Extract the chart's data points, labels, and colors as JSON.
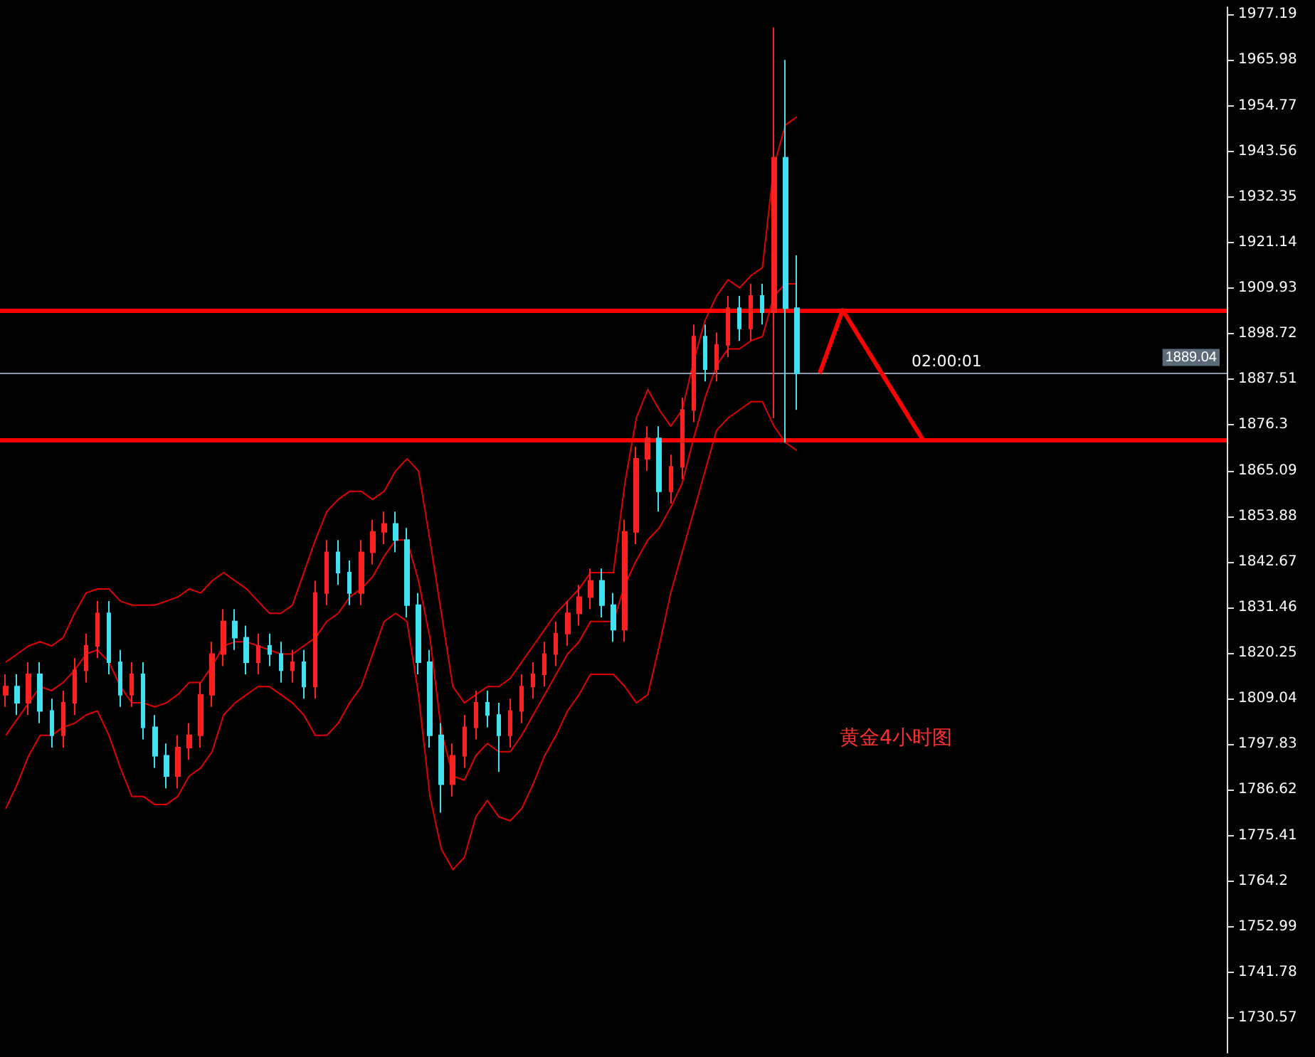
{
  "chart_data": {
    "type": "candlestick",
    "ylim": [
      1722,
      1979
    ],
    "yticks": [
      1977.19,
      1965.98,
      1954.77,
      1943.56,
      1932.35,
      1921.14,
      1909.93,
      1898.72,
      1887.51,
      1876.3,
      1865.09,
      1853.88,
      1842.67,
      1831.46,
      1820.25,
      1809.04,
      1797.83,
      1786.62,
      1775.41,
      1764.2,
      1752.99,
      1741.78,
      1730.57
    ],
    "tick_labels": "y",
    "grid": false,
    "marker": "none",
    "line_style": "solid",
    "categories": [
      null,
      null,
      null,
      null,
      null,
      null,
      null,
      null,
      null,
      null,
      null,
      null,
      null,
      null,
      null,
      null,
      null,
      null,
      null,
      null,
      null,
      null,
      null,
      null,
      null,
      null,
      null,
      null,
      null,
      null,
      null,
      null,
      null,
      null,
      null,
      null,
      null,
      null,
      null,
      null,
      null,
      null,
      null,
      null,
      null,
      null,
      null,
      null,
      null,
      null,
      null,
      null,
      null,
      null,
      null,
      null,
      null,
      null,
      null,
      null,
      null,
      null,
      null,
      null,
      null,
      null,
      null,
      null,
      null,
      null,
      null,
      null,
      null,
      null,
      null,
      null,
      null,
      null,
      null,
      null,
      null,
      null,
      null,
      null,
      null,
      null,
      null,
      null,
      null,
      null,
      null,
      null,
      null,
      null,
      null,
      null,
      null,
      null,
      null,
      null,
      null,
      null,
      null,
      null,
      null,
      null,
      null
    ],
    "series": [
      {
        "ohlc": [
          [
            1810,
            1815,
            1807,
            1812
          ],
          [
            1812,
            1815,
            1805,
            1808
          ],
          [
            1808,
            1818,
            1805,
            1815
          ],
          [
            1815,
            1818,
            1803,
            1806
          ],
          [
            1806,
            1809,
            1797,
            1800
          ],
          [
            1800,
            1811,
            1797,
            1808
          ],
          [
            1808,
            1819,
            1805,
            1816
          ],
          [
            1816,
            1825,
            1813,
            1822
          ],
          [
            1822,
            1833,
            1819,
            1830
          ],
          [
            1830,
            1833,
            1815,
            1818
          ],
          [
            1818,
            1821,
            1807,
            1810
          ],
          [
            1810,
            1818,
            1807,
            1815
          ],
          [
            1815,
            1818,
            1799,
            1802
          ],
          [
            1802,
            1805,
            1792,
            1795
          ],
          [
            1795,
            1798,
            1787,
            1790
          ],
          [
            1790,
            1800,
            1787,
            1797
          ],
          [
            1797,
            1803,
            1794,
            1800
          ],
          [
            1800,
            1813,
            1797,
            1810
          ],
          [
            1810,
            1823,
            1807,
            1820
          ],
          [
            1820,
            1831,
            1817,
            1828
          ],
          [
            1828,
            1831,
            1821,
            1824
          ],
          [
            1824,
            1827,
            1815,
            1818
          ],
          [
            1818,
            1825,
            1815,
            1822
          ],
          [
            1822,
            1825,
            1817,
            1820
          ],
          [
            1820,
            1823,
            1813,
            1816
          ],
          [
            1816,
            1821,
            1813,
            1818
          ],
          [
            1818,
            1821,
            1809,
            1812
          ],
          [
            1812,
            1838,
            1809,
            1835
          ],
          [
            1835,
            1848,
            1832,
            1845
          ],
          [
            1845,
            1848,
            1837,
            1840
          ],
          [
            1840,
            1843,
            1832,
            1835
          ],
          [
            1835,
            1848,
            1832,
            1845
          ],
          [
            1845,
            1853,
            1842,
            1850
          ],
          [
            1850,
            1855,
            1847,
            1852
          ],
          [
            1852,
            1855,
            1845,
            1848
          ],
          [
            1848,
            1851,
            1829,
            1832
          ],
          [
            1832,
            1835,
            1815,
            1818
          ],
          [
            1818,
            1821,
            1797,
            1800
          ],
          [
            1800,
            1803,
            1781,
            1788
          ],
          [
            1788,
            1798,
            1785,
            1795
          ],
          [
            1795,
            1805,
            1792,
            1802
          ],
          [
            1802,
            1811,
            1799,
            1808
          ],
          [
            1808,
            1811,
            1802,
            1805
          ],
          [
            1805,
            1808,
            1791,
            1800
          ],
          [
            1800,
            1809,
            1797,
            1806
          ],
          [
            1806,
            1815,
            1803,
            1812
          ],
          [
            1812,
            1818,
            1809,
            1815
          ],
          [
            1815,
            1823,
            1812,
            1820
          ],
          [
            1820,
            1828,
            1817,
            1825
          ],
          [
            1825,
            1833,
            1822,
            1830
          ],
          [
            1830,
            1837,
            1827,
            1834
          ],
          [
            1834,
            1841,
            1831,
            1838
          ],
          [
            1838,
            1841,
            1829,
            1832
          ],
          [
            1832,
            1835,
            1823,
            1826
          ],
          [
            1826,
            1853,
            1823,
            1850
          ],
          [
            1850,
            1871,
            1847,
            1868
          ],
          [
            1868,
            1876,
            1865,
            1873
          ],
          [
            1873,
            1876,
            1855,
            1860
          ],
          [
            1860,
            1869,
            1857,
            1866
          ],
          [
            1866,
            1883,
            1863,
            1880
          ],
          [
            1880,
            1901,
            1877,
            1898
          ],
          [
            1898,
            1901,
            1887,
            1890
          ],
          [
            1890,
            1899,
            1887,
            1896
          ],
          [
            1896,
            1908,
            1893,
            1905
          ],
          [
            1905,
            1908,
            1897,
            1900
          ],
          [
            1900,
            1911,
            1897,
            1908
          ],
          [
            1908,
            1911,
            1901,
            1904
          ],
          [
            1904,
            1974,
            1878,
            1942
          ],
          [
            1942,
            1966,
            1872,
            1905
          ],
          [
            1905,
            1918,
            1880,
            1889
          ],
          null,
          null,
          null,
          null,
          null,
          null,
          null,
          null,
          null,
          null,
          null,
          null,
          null,
          null,
          null,
          null,
          null,
          null,
          null,
          null,
          null,
          null,
          null,
          null,
          null,
          null,
          null,
          null,
          null,
          null,
          null,
          null,
          null,
          null,
          null,
          null,
          null
        ],
        "colors": [
          "#ff2020",
          "#40e0f0",
          "#ff2020",
          "#40e0f0",
          "#40e0f0",
          "#ff2020",
          "#ff2020",
          "#ff2020",
          "#ff2020",
          "#40e0f0",
          "#40e0f0",
          "#ff2020",
          "#40e0f0",
          "#40e0f0",
          "#40e0f0",
          "#ff2020",
          "#ff2020",
          "#ff2020",
          "#ff2020",
          "#ff2020",
          "#40e0f0",
          "#40e0f0",
          "#ff2020",
          "#40e0f0",
          "#40e0f0",
          "#ff2020",
          "#40e0f0",
          "#ff2020",
          "#ff2020",
          "#40e0f0",
          "#40e0f0",
          "#ff2020",
          "#ff2020",
          "#ff2020",
          "#40e0f0",
          "#40e0f0",
          "#40e0f0",
          "#40e0f0",
          "#40e0f0",
          "#ff2020",
          "#ff2020",
          "#ff2020",
          "#40e0f0",
          "#40e0f0",
          "#ff2020",
          "#ff2020",
          "#ff2020",
          "#ff2020",
          "#ff2020",
          "#ff2020",
          "#ff2020",
          "#ff2020",
          "#40e0f0",
          "#40e0f0",
          "#ff2020",
          "#ff2020",
          "#ff2020",
          "#40e0f0",
          "#ff2020",
          "#ff2020",
          "#ff2020",
          "#40e0f0",
          "#ff2020",
          "#ff2020",
          "#40e0f0",
          "#ff2020",
          "#40e0f0",
          "#ff2020",
          "#40e0f0",
          "#40e0f0",
          null,
          null,
          null,
          null,
          null,
          null,
          null,
          null,
          null,
          null,
          null,
          null,
          null,
          null,
          null,
          null,
          null,
          null,
          null,
          null,
          null,
          null,
          null,
          null,
          null,
          null,
          null,
          null,
          null,
          null,
          null,
          null,
          null,
          null,
          null,
          null,
          null
        ]
      },
      {
        "type": "line",
        "color": "#e00000",
        "values": [
          1818,
          1820,
          1822,
          1823,
          1822,
          1824,
          1830,
          1835,
          1836,
          1836,
          1833,
          1832,
          1832,
          1832,
          1833,
          1834,
          1836,
          1835,
          1838,
          1840,
          1838,
          1836,
          1833,
          1830,
          1830,
          1832,
          1840,
          1848,
          1855,
          1858,
          1860,
          1860,
          1858,
          1860,
          1865,
          1868,
          1865,
          1848,
          1830,
          1812,
          1808,
          1810,
          1812,
          1812,
          1814,
          1818,
          1822,
          1826,
          1830,
          1833,
          1836,
          1840,
          1840,
          1840,
          1862,
          1878,
          1885,
          1880,
          1876,
          1880,
          1892,
          1902,
          1908,
          1912,
          1910,
          1913,
          1915,
          1940,
          1950,
          1952,
          null,
          null,
          null,
          null,
          null,
          null,
          null,
          null,
          null,
          null,
          null,
          null,
          null,
          null,
          null,
          null,
          null,
          null,
          null,
          null,
          null,
          null,
          null,
          null,
          null,
          null,
          null,
          null,
          null,
          null,
          null,
          null,
          null,
          null,
          null,
          null,
          null
        ]
      },
      {
        "type": "line",
        "color": "#e00000",
        "values": [
          1800,
          1804,
          1808,
          1812,
          1811,
          1813,
          1816,
          1820,
          1821,
          1818,
          1812,
          1808,
          1808,
          1807,
          1808,
          1810,
          1813,
          1813,
          1817,
          1822,
          1823,
          1823,
          1822,
          1821,
          1820,
          1820,
          1822,
          1824,
          1828,
          1830,
          1834,
          1836,
          1839,
          1844,
          1848,
          1848,
          1838,
          1824,
          1801,
          1790,
          1789,
          1795,
          1798,
          1796,
          1796,
          1800,
          1805,
          1810,
          1815,
          1820,
          1823,
          1828,
          1828,
          1828,
          1837,
          1843,
          1848,
          1851,
          1856,
          1862,
          1873,
          1883,
          1891,
          1895,
          1895,
          1897,
          1898,
          1908,
          1911,
          1911,
          null,
          null,
          null,
          null,
          null,
          null,
          null,
          null,
          null,
          null,
          null,
          null,
          null,
          null,
          null,
          null,
          null,
          null,
          null,
          null,
          null,
          null,
          null,
          null,
          null,
          null,
          null,
          null,
          null,
          null,
          null,
          null,
          null,
          null,
          null,
          null,
          null
        ]
      },
      {
        "type": "line",
        "color": "#e00000",
        "values": [
          1782,
          1788,
          1795,
          1800,
          1800,
          1802,
          1803,
          1805,
          1806,
          1800,
          1792,
          1785,
          1785,
          1783,
          1783,
          1785,
          1790,
          1792,
          1796,
          1805,
          1808,
          1810,
          1812,
          1812,
          1810,
          1808,
          1805,
          1800,
          1800,
          1803,
          1808,
          1812,
          1820,
          1828,
          1830,
          1828,
          1810,
          1785,
          1772,
          1767,
          1770,
          1780,
          1784,
          1780,
          1779,
          1782,
          1788,
          1795,
          1800,
          1806,
          1810,
          1815,
          1815,
          1815,
          1812,
          1808,
          1810,
          1822,
          1835,
          1845,
          1855,
          1865,
          1875,
          1878,
          1880,
          1882,
          1882,
          1876,
          1872,
          1870,
          null,
          null,
          null,
          null,
          null,
          null,
          null,
          null,
          null,
          null,
          null,
          null,
          null,
          null,
          null,
          null,
          null,
          null,
          null,
          null,
          null,
          null,
          null,
          null,
          null,
          null,
          null,
          null,
          null,
          null,
          null,
          null,
          null,
          null,
          null,
          null,
          null
        ]
      }
    ],
    "ref_lines": [
      {
        "axis": "y",
        "value": 1904.5,
        "color": "#ff0000",
        "line_style": "solid"
      },
      {
        "axis": "y",
        "value": 1872.6,
        "color": "#ff0000",
        "line_style": "solid"
      },
      {
        "axis": "y",
        "value": 1889.04,
        "label": "1889.04",
        "color": "#8a9aa8",
        "line_style": "solid"
      }
    ],
    "annotations": [
      "黄金4小时图",
      "02:00:01"
    ]
  }
}
